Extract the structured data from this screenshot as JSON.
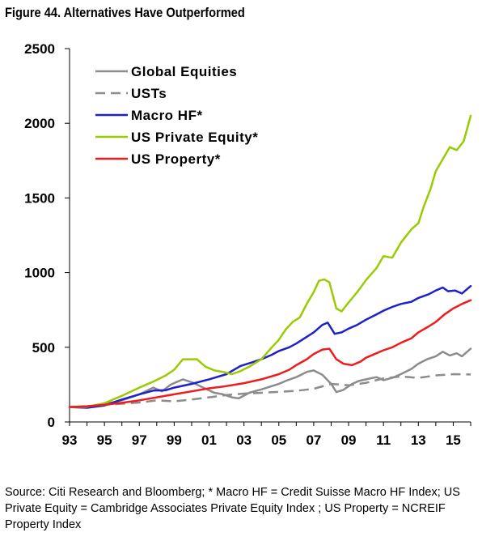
{
  "title": "Figure 44. Alternatives Have Outperformed",
  "source_note": "Source: Citi Research and Bloomberg; * Macro HF = Credit Suisse Macro HF Index; US Private Equity = Cambridge Associates Private Equity Index ; US Property = NCREIF Property Index",
  "chart_data": {
    "type": "line",
    "title": "",
    "xlabel": "",
    "ylabel": "",
    "xlim": [
      1993,
      2016
    ],
    "ylim": [
      0,
      2500
    ],
    "x_ticks": [
      1993,
      1995,
      1997,
      1999,
      2001,
      2003,
      2005,
      2007,
      2009,
      2011,
      2013,
      2015
    ],
    "x_tick_labels": [
      "93",
      "95",
      "97",
      "99",
      "01",
      "03",
      "05",
      "07",
      "09",
      "11",
      "13",
      "15"
    ],
    "y_ticks": [
      0,
      500,
      1000,
      1500,
      2000,
      2500
    ],
    "y_tick_labels": [
      "0",
      "500",
      "1000",
      "1500",
      "2000",
      "2500"
    ],
    "grid": false,
    "legend_position": "top-left",
    "series": [
      {
        "name": "Global Equities",
        "color": "#8c8c8c",
        "dash": "solid",
        "points": [
          [
            1993,
            100
          ],
          [
            1994,
            105
          ],
          [
            1995,
            118
          ],
          [
            1996,
            145
          ],
          [
            1997,
            185
          ],
          [
            1997.8,
            230
          ],
          [
            1998.3,
            205
          ],
          [
            1998.8,
            250
          ],
          [
            1999.5,
            285
          ],
          [
            2000.1,
            262
          ],
          [
            2000.7,
            228
          ],
          [
            2001.3,
            195
          ],
          [
            2001.8,
            185
          ],
          [
            2002.3,
            165
          ],
          [
            2002.7,
            158
          ],
          [
            2003.3,
            195
          ],
          [
            2004,
            218
          ],
          [
            2005,
            255
          ],
          [
            2005.5,
            280
          ],
          [
            2006,
            300
          ],
          [
            2006.6,
            335
          ],
          [
            2007,
            345
          ],
          [
            2007.5,
            315
          ],
          [
            2008,
            255
          ],
          [
            2008.3,
            200
          ],
          [
            2008.7,
            215
          ],
          [
            2009.2,
            255
          ],
          [
            2009.6,
            275
          ],
          [
            2010,
            285
          ],
          [
            2010.6,
            300
          ],
          [
            2011,
            280
          ],
          [
            2011.5,
            295
          ],
          [
            2012,
            320
          ],
          [
            2012.6,
            355
          ],
          [
            2013,
            390
          ],
          [
            2013.5,
            420
          ],
          [
            2014,
            440
          ],
          [
            2014.4,
            470
          ],
          [
            2014.8,
            445
          ],
          [
            2015.2,
            460
          ],
          [
            2015.5,
            440
          ],
          [
            2016,
            490
          ]
        ]
      },
      {
        "name": "USTs",
        "color": "#8c8c8c",
        "dash": "dashed",
        "points": [
          [
            1993,
            100
          ],
          [
            1994,
            100
          ],
          [
            1995,
            115
          ],
          [
            1996,
            122
          ],
          [
            1997,
            130
          ],
          [
            1998,
            145
          ],
          [
            1999,
            138
          ],
          [
            2000,
            150
          ],
          [
            2001,
            165
          ],
          [
            2002,
            180
          ],
          [
            2003,
            190
          ],
          [
            2004,
            195
          ],
          [
            2005,
            202
          ],
          [
            2006,
            208
          ],
          [
            2007,
            222
          ],
          [
            2008,
            255
          ],
          [
            2009,
            245
          ],
          [
            2010,
            262
          ],
          [
            2011,
            292
          ],
          [
            2012,
            305
          ],
          [
            2013,
            295
          ],
          [
            2014,
            312
          ],
          [
            2015,
            320
          ],
          [
            2016,
            318
          ]
        ]
      },
      {
        "name": "Macro HF*",
        "color": "#1f1fcc",
        "dash": "solid",
        "points": [
          [
            1993,
            100
          ],
          [
            1994,
            95
          ],
          [
            1995,
            110
          ],
          [
            1996,
            150
          ],
          [
            1997,
            185
          ],
          [
            1997.8,
            210
          ],
          [
            1998.5,
            212
          ],
          [
            1999,
            230
          ],
          [
            2000,
            255
          ],
          [
            2001,
            285
          ],
          [
            2002,
            320
          ],
          [
            2002.8,
            375
          ],
          [
            2003.5,
            400
          ],
          [
            2004,
            420
          ],
          [
            2004.6,
            450
          ],
          [
            2005,
            475
          ],
          [
            2005.6,
            500
          ],
          [
            2006,
            525
          ],
          [
            2006.6,
            570
          ],
          [
            2007,
            600
          ],
          [
            2007.5,
            650
          ],
          [
            2007.8,
            665
          ],
          [
            2008.2,
            590
          ],
          [
            2008.6,
            600
          ],
          [
            2009,
            625
          ],
          [
            2009.5,
            650
          ],
          [
            2010,
            685
          ],
          [
            2010.6,
            720
          ],
          [
            2011,
            745
          ],
          [
            2011.5,
            770
          ],
          [
            2012,
            790
          ],
          [
            2012.6,
            805
          ],
          [
            2013,
            830
          ],
          [
            2013.6,
            855
          ],
          [
            2014,
            880
          ],
          [
            2014.4,
            900
          ],
          [
            2014.7,
            875
          ],
          [
            2015.1,
            880
          ],
          [
            2015.5,
            860
          ],
          [
            2016,
            910
          ]
        ]
      },
      {
        "name": "US Private Equity*",
        "color": "#99cc00",
        "dash": "solid",
        "points": [
          [
            1993,
            100
          ],
          [
            1994,
            102
          ],
          [
            1995,
            125
          ],
          [
            1996,
            175
          ],
          [
            1997,
            230
          ],
          [
            1997.8,
            270
          ],
          [
            1998.5,
            310
          ],
          [
            1999,
            350
          ],
          [
            1999.5,
            420
          ],
          [
            2000.3,
            420
          ],
          [
            2000.8,
            370
          ],
          [
            2001.3,
            345
          ],
          [
            2001.8,
            335
          ],
          [
            2002.3,
            320
          ],
          [
            2002.8,
            340
          ],
          [
            2003.3,
            370
          ],
          [
            2004,
            420
          ],
          [
            2004.6,
            500
          ],
          [
            2005,
            550
          ],
          [
            2005.4,
            620
          ],
          [
            2005.8,
            670
          ],
          [
            2006.2,
            700
          ],
          [
            2006.6,
            790
          ],
          [
            2007,
            870
          ],
          [
            2007.3,
            945
          ],
          [
            2007.6,
            955
          ],
          [
            2007.9,
            935
          ],
          [
            2008.3,
            760
          ],
          [
            2008.6,
            740
          ],
          [
            2009,
            800
          ],
          [
            2009.5,
            870
          ],
          [
            2010,
            950
          ],
          [
            2010.6,
            1030
          ],
          [
            2011,
            1110
          ],
          [
            2011.5,
            1100
          ],
          [
            2012,
            1200
          ],
          [
            2012.6,
            1290
          ],
          [
            2013,
            1330
          ],
          [
            2013.3,
            1440
          ],
          [
            2013.7,
            1560
          ],
          [
            2014,
            1680
          ],
          [
            2014.4,
            1760
          ],
          [
            2014.8,
            1840
          ],
          [
            2015.2,
            1820
          ],
          [
            2015.6,
            1880
          ],
          [
            2016,
            2050
          ]
        ]
      },
      {
        "name": "US Property*",
        "color": "#ee1c1c",
        "dash": "solid",
        "points": [
          [
            1993,
            100
          ],
          [
            1994,
            105
          ],
          [
            1995,
            115
          ],
          [
            1996,
            128
          ],
          [
            1997,
            145
          ],
          [
            1998,
            165
          ],
          [
            1999,
            185
          ],
          [
            2000,
            205
          ],
          [
            2001,
            225
          ],
          [
            2002,
            240
          ],
          [
            2003,
            260
          ],
          [
            2004,
            285
          ],
          [
            2005,
            320
          ],
          [
            2005.6,
            350
          ],
          [
            2006,
            380
          ],
          [
            2006.6,
            420
          ],
          [
            2007,
            455
          ],
          [
            2007.5,
            485
          ],
          [
            2007.9,
            490
          ],
          [
            2008.3,
            420
          ],
          [
            2008.7,
            390
          ],
          [
            2009.2,
            380
          ],
          [
            2009.7,
            405
          ],
          [
            2010,
            430
          ],
          [
            2010.6,
            460
          ],
          [
            2011,
            480
          ],
          [
            2011.5,
            500
          ],
          [
            2012,
            530
          ],
          [
            2012.6,
            560
          ],
          [
            2013,
            600
          ],
          [
            2013.6,
            640
          ],
          [
            2014,
            670
          ],
          [
            2014.5,
            720
          ],
          [
            2015,
            760
          ],
          [
            2015.5,
            790
          ],
          [
            2016,
            815
          ]
        ]
      }
    ]
  }
}
